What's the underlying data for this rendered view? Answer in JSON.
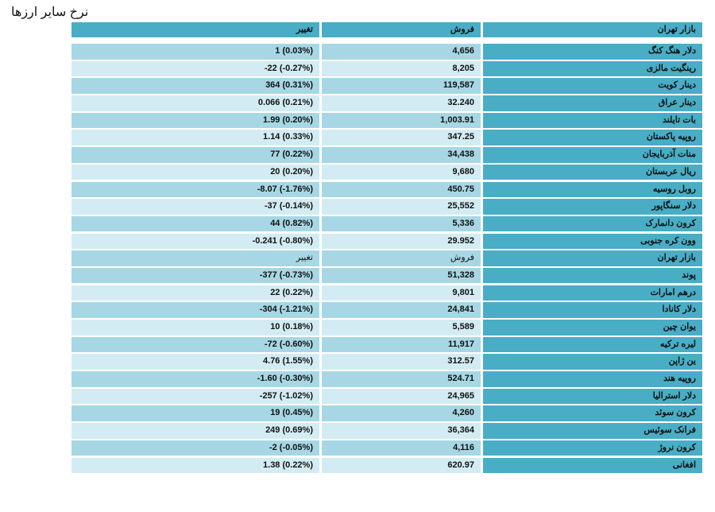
{
  "title": "نرخ سایر ارزها",
  "header": {
    "market": "بازار تهران",
    "sell": "فروش",
    "change": "تغییر"
  },
  "rows": [
    {
      "market": "دلار هنگ کنگ",
      "sell": "4,656",
      "change": "1 (0.03%)"
    },
    {
      "market": "رینگیت مالزی",
      "sell": "8,205",
      "change": "-22 (-0.27%)"
    },
    {
      "market": "دینار کویت",
      "sell": "119,587",
      "change": "364 (0.31%)"
    },
    {
      "market": "دینار عراق",
      "sell": "32.240",
      "change": "0.066 (0.21%)"
    },
    {
      "market": "بات تایلند",
      "sell": "1,003.91",
      "change": "1.99 (0.20%)"
    },
    {
      "market": "روپیه پاکستان",
      "sell": "347.25",
      "change": "1.14 (0.33%)"
    },
    {
      "market": "منات آذربایجان",
      "sell": "34,438",
      "change": "77 (0.22%)"
    },
    {
      "market": "ریال عربستان",
      "sell": "9,680",
      "change": "20 (0.20%)"
    },
    {
      "market": "روبل روسیه",
      "sell": "450.75",
      "change": "-8.07 (-1.76%)"
    },
    {
      "market": "دلار سنگاپور",
      "sell": "25,552",
      "change": "-37 (-0.14%)"
    },
    {
      "market": "کرون دانمارک",
      "sell": "5,336",
      "change": "44 (0.82%)"
    },
    {
      "market": "وون کره جنوبی",
      "sell": "29.952",
      "change": "-0.241 (-0.80%)"
    }
  ],
  "subheader": {
    "market": "بازار تهران",
    "sell": "فروش",
    "change": "تغییر"
  },
  "rows2": [
    {
      "market": "پوند",
      "sell": "51,328",
      "change": "-377 (-0.73%)"
    },
    {
      "market": "درهم امارات",
      "sell": "9,801",
      "change": "22 (0.22%)"
    },
    {
      "market": "دلار کانادا",
      "sell": "24,841",
      "change": "-304 (-1.21%)"
    },
    {
      "market": "یوان چین",
      "sell": "5,589",
      "change": "10 (0.18%)"
    },
    {
      "market": "لیره ترکیه",
      "sell": "11,917",
      "change": "-72 (-0.60%)"
    },
    {
      "market": "ین ژاپن",
      "sell": "312.57",
      "change": "4.76 (1.55%)"
    },
    {
      "market": "روپیه هند",
      "sell": "524.71",
      "change": "-1.60 (-0.30%)"
    },
    {
      "market": "دلار استرالیا",
      "sell": "24,965",
      "change": "-257 (-1.02%)"
    },
    {
      "market": "کرون سوئد",
      "sell": "4,260",
      "change": "19 (0.45%)"
    },
    {
      "market": "فرانک سوئیس",
      "sell": "36,364",
      "change": "249 (0.69%)"
    },
    {
      "market": "کرون نروژ",
      "sell": "4,116",
      "change": "-2 (-0.05%)"
    },
    {
      "market": "افغانی",
      "sell": "620.97",
      "change": "1.38 (0.22%)"
    }
  ]
}
